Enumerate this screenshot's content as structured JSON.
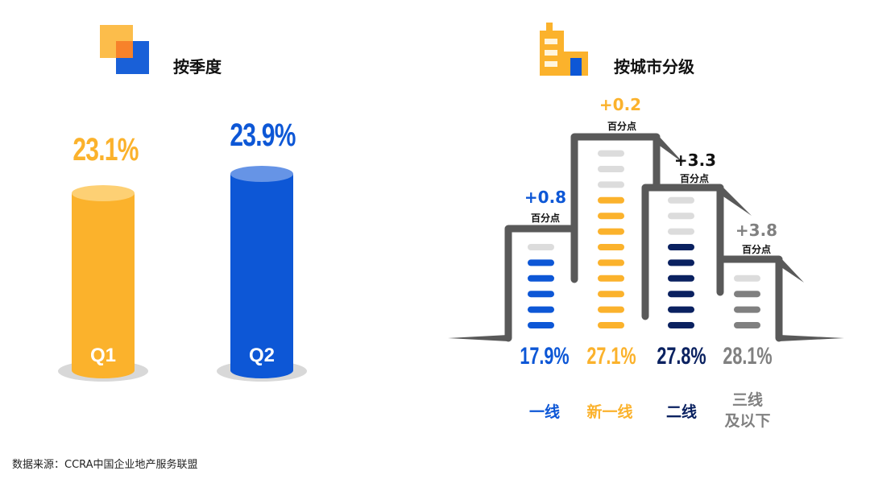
{
  "source": "数据来源：CCRA中国企业地产服务联盟",
  "chart_data": [
    {
      "type": "bar",
      "title": "按季度",
      "categories": [
        "Q1",
        "Q2"
      ],
      "values": [
        23.1,
        23.9
      ],
      "value_labels": [
        "23.1%",
        "23.9%"
      ],
      "colors": [
        "#fbb22c",
        "#0d57d6"
      ],
      "unit": "%"
    },
    {
      "type": "bar",
      "title": "按城市分级",
      "categories": [
        "一线",
        "新一线",
        "二线",
        "三线及以下"
      ],
      "category_lines": [
        [
          "一线"
        ],
        [
          "新一线"
        ],
        [
          "二线"
        ],
        [
          "三线",
          "及以下"
        ]
      ],
      "values": [
        17.9,
        27.1,
        27.8,
        28.1
      ],
      "value_labels": [
        "17.9%",
        "27.1%",
        "27.8%",
        "28.1%"
      ],
      "changes": [
        "+0.8",
        "+0.2",
        "+3.3",
        "+3.8"
      ],
      "change_unit": "百分点",
      "colors": [
        "#0d57d6",
        "#fbb22c",
        "#0a2160",
        "#808080"
      ],
      "bar_segments_filled": [
        5,
        9,
        6,
        3
      ],
      "bar_segments_empty": [
        1,
        3,
        3,
        1
      ]
    }
  ]
}
